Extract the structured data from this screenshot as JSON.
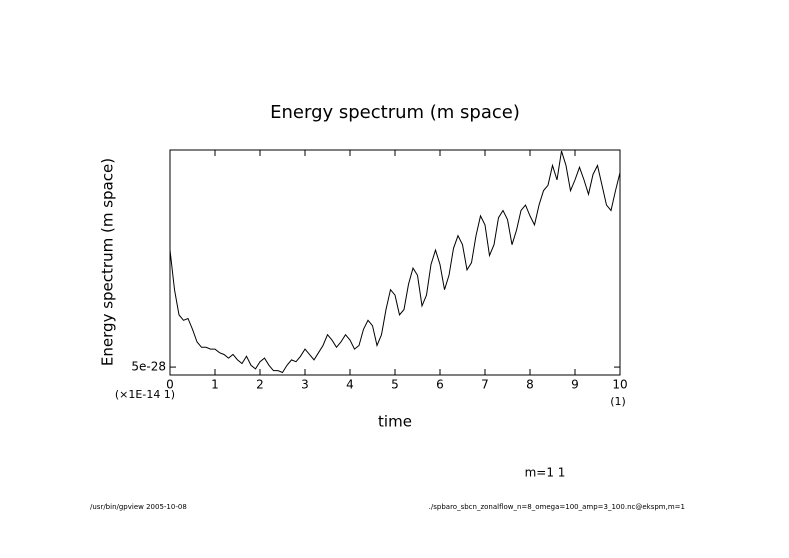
{
  "chart_data": {
    "type": "line",
    "title": "Energy spectrum (m space)",
    "xlabel": "time",
    "ylabel": "Energy spectrum (m space)",
    "x_unit": "(1)",
    "y_scale_note": "(×1E-14 1)",
    "annotation": "m=1 1",
    "footer_left": "/usr/bin/gpview  2005-10-08",
    "footer_right": "./spbaro_sbcn_zonalflow_n=8_omega=100_amp=3_100.nc@ekspm,m=1",
    "color": "#000000",
    "xlim": [
      0,
      10
    ],
    "xticks": [
      0,
      1,
      2,
      3,
      4,
      5,
      6,
      7,
      8,
      9,
      10
    ],
    "ylim": [
      4.56e-28,
      1.706e-27
    ],
    "yticks": [
      {
        "value": 5e-28,
        "label": "5e-28"
      }
    ],
    "x": [
      0,
      0.1,
      0.2,
      0.3,
      0.4,
      0.5,
      0.6,
      0.7,
      0.8,
      0.9,
      1,
      1.1,
      1.2,
      1.3,
      1.4,
      1.5,
      1.6,
      1.7,
      1.8,
      1.9,
      2,
      2.1,
      2.2,
      2.3,
      2.4,
      2.5,
      2.6,
      2.7,
      2.8,
      2.9,
      3,
      3.1,
      3.2,
      3.3,
      3.4,
      3.5,
      3.6,
      3.7,
      3.8,
      3.9,
      4,
      4.1,
      4.2,
      4.3,
      4.4,
      4.5,
      4.6,
      4.7,
      4.8,
      4.9,
      5,
      5.1,
      5.2,
      5.3,
      5.4,
      5.5,
      5.6,
      5.7,
      5.8,
      5.9,
      6,
      6.1,
      6.2,
      6.3,
      6.4,
      6.5,
      6.6,
      6.7,
      6.8,
      6.9,
      7,
      7.1,
      7.2,
      7.3,
      7.4,
      7.5,
      7.6,
      7.7,
      7.8,
      7.9,
      8,
      8.1,
      8.2,
      8.3,
      8.4,
      8.5,
      8.6,
      8.7,
      8.8,
      8.9,
      9,
      9.1,
      9.2,
      9.3,
      9.4,
      9.5,
      9.6,
      9.7,
      9.8,
      9.9,
      10
    ],
    "values": [
      1.15e-27,
      9.3e-28,
      7.9e-28,
      7.6e-28,
      7.7e-28,
      7.1e-28,
      6.4e-28,
      6.1e-28,
      6.1e-28,
      6e-28,
      6e-28,
      5.8e-28,
      5.7e-28,
      5.5e-28,
      5.7e-28,
      5.4e-28,
      5.2e-28,
      5.6e-28,
      5.1e-28,
      4.9e-28,
      5.3e-28,
      5.5e-28,
      5.1e-28,
      4.8e-28,
      4.8e-28,
      4.7e-28,
      5.1e-28,
      5.4e-28,
      5.3e-28,
      5.6e-28,
      6e-28,
      5.7e-28,
      5.4e-28,
      5.8e-28,
      6.2e-28,
      6.8e-28,
      6.5e-28,
      6.1e-28,
      6.4e-28,
      6.8e-28,
      6.5e-28,
      6e-28,
      6.2e-28,
      7.1e-28,
      7.6e-28,
      7.3e-28,
      6.2e-28,
      6.8e-28,
      8.2e-28,
      9.3e-28,
      9e-28,
      7.9e-28,
      8.2e-28,
      9.6e-28,
      1.05e-27,
      1.01e-27,
      8.4e-28,
      9e-28,
      1.07e-27,
      1.15e-27,
      1.07e-27,
      9.3e-28,
      1.01e-27,
      1.16e-27,
      1.23e-27,
      1.18e-27,
      1.04e-27,
      1.08e-27,
      1.23e-27,
      1.34e-27,
      1.29e-27,
      1.12e-27,
      1.18e-27,
      1.33e-27,
      1.37e-27,
      1.32e-27,
      1.18e-27,
      1.26e-27,
      1.37e-27,
      1.4e-27,
      1.34e-27,
      1.29e-27,
      1.4e-27,
      1.48e-27,
      1.51e-27,
      1.62e-27,
      1.54e-27,
      1.7e-27,
      1.62e-27,
      1.48e-27,
      1.54e-27,
      1.61e-27,
      1.54e-27,
      1.46e-27,
      1.57e-27,
      1.62e-27,
      1.51e-27,
      1.4e-27,
      1.37e-27,
      1.48e-27,
      1.58e-27
    ]
  }
}
